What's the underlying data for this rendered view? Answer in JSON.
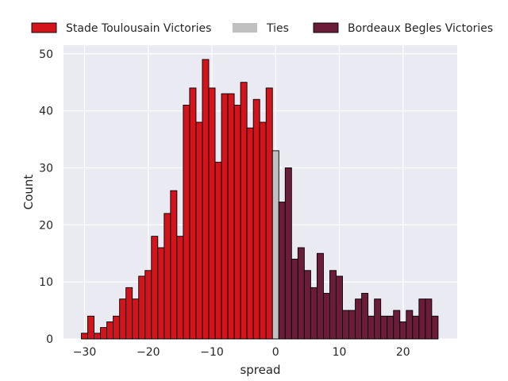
{
  "chart_data": {
    "type": "bar",
    "xlabel": "spread",
    "ylabel": "Count",
    "xlim": [
      -33.3,
      28.5
    ],
    "ylim": [
      0,
      51.5
    ],
    "xticks": [
      -30,
      -20,
      -10,
      0,
      10,
      20
    ],
    "yticks": [
      0,
      10,
      20,
      30,
      40,
      50
    ],
    "grid": true,
    "legend_position": "top",
    "colors": {
      "background": "#EAEAF2",
      "grid": "#FFFFFF",
      "toulouse": "#D4141C",
      "ties": "#C0C0C0",
      "bordeaux": "#6B1C38",
      "edge": "#000000"
    },
    "series": [
      {
        "name": "Stade Toulousain Victories",
        "color": "#D4141C",
        "x": [
          -30,
          -29,
          -28,
          -27,
          -26,
          -25,
          -24,
          -23,
          -22,
          -21,
          -20,
          -19,
          -18,
          -17,
          -16,
          -15,
          -14,
          -13,
          -12,
          -11,
          -10,
          -9,
          -8,
          -7,
          -6,
          -5,
          -4,
          -3,
          -2,
          -1
        ],
        "values": [
          1,
          4,
          1,
          2,
          3,
          4,
          7,
          9,
          7,
          11,
          12,
          18,
          16,
          22,
          26,
          18,
          41,
          44,
          38,
          49,
          44,
          31,
          43,
          43,
          41,
          45,
          37,
          42,
          38,
          44
        ]
      },
      {
        "name": "Ties",
        "color": "#C0C0C0",
        "x": [
          0
        ],
        "values": [
          33
        ]
      },
      {
        "name": "Bordeaux Begles Victories",
        "color": "#6B1C38",
        "x": [
          1,
          2,
          3,
          4,
          5,
          6,
          7,
          8,
          9,
          10,
          11,
          12,
          13,
          14,
          15,
          16,
          17,
          18,
          19,
          20,
          21,
          22,
          23,
          24,
          25
        ],
        "values": [
          24,
          30,
          14,
          16,
          12,
          9,
          15,
          8,
          12,
          11,
          5,
          5,
          7,
          8,
          4,
          7,
          4,
          4,
          5,
          3,
          5,
          4,
          7,
          7,
          4
        ]
      }
    ]
  }
}
